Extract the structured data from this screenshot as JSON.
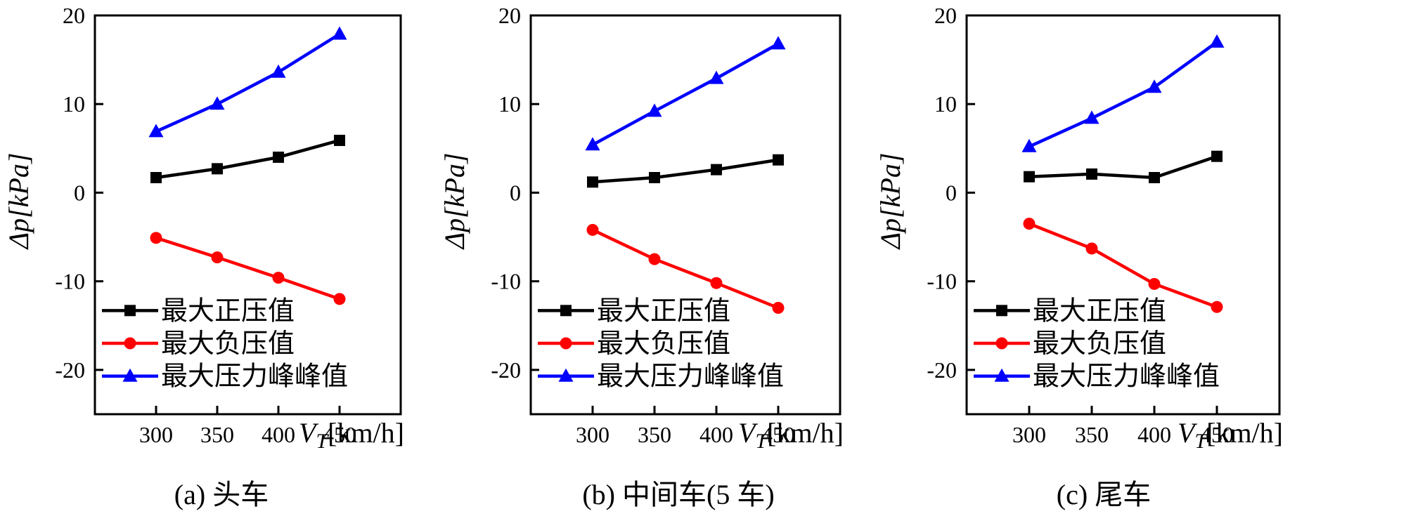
{
  "chart_data": [
    {
      "type": "line",
      "caption": "(a)  头车",
      "x": [
        300,
        350,
        400,
        450
      ],
      "series": [
        {
          "name": "最大正压值",
          "color": "#000000",
          "marker": "square",
          "values": [
            1.7,
            2.7,
            4.0,
            5.9
          ]
        },
        {
          "name": "最大负压值",
          "color": "#ff0000",
          "marker": "circle",
          "values": [
            -5.1,
            -7.3,
            -9.6,
            -12.0
          ]
        },
        {
          "name": "最大压力峰峰值",
          "color": "#0000ff",
          "marker": "triangle",
          "values": [
            6.9,
            10.0,
            13.6,
            17.9
          ]
        }
      ],
      "xticks": [
        "300",
        "350",
        "400",
        "450"
      ],
      "yticks": [
        "20",
        "10",
        "0",
        "-10",
        "-20"
      ],
      "ylabel": "Δp[kPa]",
      "xlabel_var": "V",
      "xlabel_sub": "T",
      "xlabel_unit": "[km/h]",
      "xlim": [
        250,
        500
      ],
      "ylim": [
        -25,
        20
      ],
      "legend_position": "lower-left"
    },
    {
      "type": "line",
      "caption": "(b)  中间车(5 车)",
      "x": [
        300,
        350,
        400,
        450
      ],
      "series": [
        {
          "name": "最大正压值",
          "color": "#000000",
          "marker": "square",
          "values": [
            1.2,
            1.7,
            2.6,
            3.7
          ]
        },
        {
          "name": "最大负压值",
          "color": "#ff0000",
          "marker": "circle",
          "values": [
            -4.2,
            -7.5,
            -10.2,
            -13.0
          ]
        },
        {
          "name": "最大压力峰峰值",
          "color": "#0000ff",
          "marker": "triangle",
          "values": [
            5.4,
            9.2,
            12.9,
            16.8
          ]
        }
      ],
      "xticks": [
        "300",
        "350",
        "400",
        "450"
      ],
      "yticks": [
        "20",
        "10",
        "0",
        "-10",
        "-20"
      ],
      "ylabel": "Δp[kPa]",
      "xlabel_var": "V",
      "xlabel_sub": "T",
      "xlabel_unit": "[km/h]",
      "xlim": [
        250,
        500
      ],
      "ylim": [
        -25,
        20
      ],
      "legend_position": "lower-left"
    },
    {
      "type": "line",
      "caption": "(c)  尾车",
      "x": [
        300,
        350,
        400,
        450
      ],
      "series": [
        {
          "name": "最大正压值",
          "color": "#000000",
          "marker": "square",
          "values": [
            1.8,
            2.1,
            1.7,
            4.1
          ]
        },
        {
          "name": "最大负压值",
          "color": "#ff0000",
          "marker": "circle",
          "values": [
            -3.5,
            -6.3,
            -10.3,
            -12.9
          ]
        },
        {
          "name": "最大压力峰峰值",
          "color": "#0000ff",
          "marker": "triangle",
          "values": [
            5.2,
            8.4,
            11.9,
            17.0
          ]
        }
      ],
      "xticks": [
        "300",
        "350",
        "400",
        "450"
      ],
      "yticks": [
        "20",
        "10",
        "0",
        "-10",
        "-20"
      ],
      "ylabel": "Δp[kPa]",
      "xlabel_var": "V",
      "xlabel_sub": "T",
      "xlabel_unit": "[km/h]",
      "xlim": [
        250,
        500
      ],
      "ylim": [
        -25,
        20
      ],
      "legend_position": "lower-left"
    }
  ]
}
